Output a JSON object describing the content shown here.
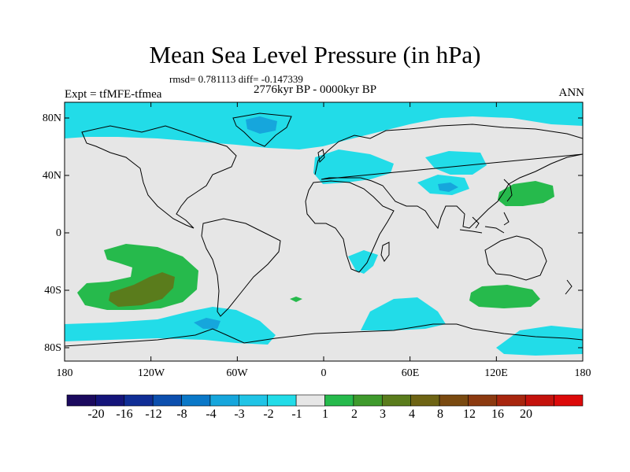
{
  "title": "Mean Sea Level Pressure (in hPa)",
  "stats": "rmsd= 0.781113 diff= -0.147339",
  "period": "2776kyr BP - 0000kyr BP",
  "experiment": "Expt = tfMFE-tfmea",
  "season": "ANN",
  "lat_labels": [
    "80N",
    "40N",
    "0",
    "40S",
    "80S"
  ],
  "lon_labels": [
    "180",
    "120W",
    "60W",
    "0",
    "60E",
    "120E",
    "180"
  ],
  "colorbar": {
    "colors": [
      "#1b0a5e",
      "#14147a",
      "#102e96",
      "#0c4fae",
      "#0a78c8",
      "#16a6dc",
      "#20c4e6",
      "#22dce8",
      "#e6e6e6",
      "#26ba4c",
      "#3e9a2c",
      "#5a7c1c",
      "#6e6414",
      "#7a4a10",
      "#8c3a10",
      "#a8260e",
      "#c4120c",
      "#dc0a0a"
    ],
    "labels": [
      "-20",
      "-16",
      "-12",
      "-8",
      "-4",
      "-3",
      "-2",
      "-1",
      "1",
      "2",
      "3",
      "4",
      "8",
      "12",
      "16",
      "20"
    ]
  }
}
